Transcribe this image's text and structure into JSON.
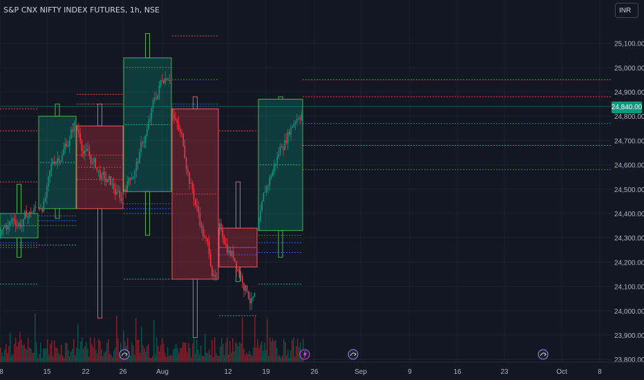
{
  "chart": {
    "title": "S&P CNX NIFTY INDEX FUTURES, 1h, NSE",
    "currency": "INR",
    "last_price": "24,840.00"
  },
  "colors": {
    "background": "#131722",
    "up": "#089981",
    "down": "#f23645",
    "blue_dotted": "#2962ff",
    "green_dotted": "#22ab94",
    "red_dotted": "#f23645"
  },
  "price_axis": {
    "labels": [
      "25,100.00",
      "25,000.00",
      "24,900.00",
      "24,800.00",
      "24,700.00",
      "24,600.00",
      "24,500.00",
      "24,400.00",
      "24,300.00",
      "24,200.00",
      "24,100.00",
      "24,000.00",
      "23,900.00",
      "23,800.00"
    ]
  },
  "time_axis": {
    "labels": [
      "8",
      "15",
      "22",
      "26",
      "Aug",
      "12",
      "19",
      "26",
      "Sep",
      "9",
      "16",
      "23",
      "Oct",
      "8"
    ]
  },
  "icons": [
    "dividend-lightning-icon",
    "split-arrow-icon"
  ],
  "chart_data": {
    "type": "candlestick",
    "price_range": [
      23780,
      25210
    ],
    "period_boxes": [
      {
        "label": "week-of-8",
        "open": 24300,
        "close": 24400,
        "high": 24520,
        "low": 24220
      },
      {
        "label": "week-of-15",
        "open": 24420,
        "close": 24800,
        "high": 24850,
        "low": 24380
      },
      {
        "label": "week-of-22",
        "open": 24760,
        "close": 24420,
        "high": 24850,
        "low": 23970
      },
      {
        "label": "week-of-26",
        "open": 24490,
        "close": 25040,
        "high": 25140,
        "low": 24310
      },
      {
        "label": "week-of-Aug",
        "open": 24830,
        "close": 24130,
        "high": 24880,
        "low": 23890
      },
      {
        "label": "week-of-12",
        "open": 24340,
        "close": 24180,
        "high": 24530,
        "low": 24120
      },
      {
        "label": "week-of-19",
        "open": 24330,
        "close": 24870,
        "high": 24880,
        "low": 24220
      }
    ]
  }
}
